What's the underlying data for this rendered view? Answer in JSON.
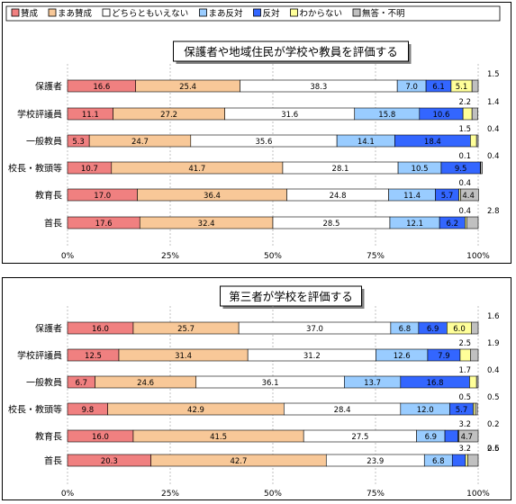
{
  "legend": {
    "items": [
      {
        "label": "賛成",
        "color": "#f08080"
      },
      {
        "label": "まあ賛成",
        "color": "#f8c898"
      },
      {
        "label": "どちらともいえない",
        "color": "#ffffff"
      },
      {
        "label": "まあ反対",
        "color": "#99ccff"
      },
      {
        "label": "反対",
        "color": "#3366ff"
      },
      {
        "label": "わからない",
        "color": "#ffff99"
      },
      {
        "label": "無答・不明",
        "color": "#c0c0c0"
      }
    ]
  },
  "chart_data": [
    {
      "type": "bar",
      "stacked": true,
      "orientation": "horizontal",
      "title": "保護者や地域住民が学校や教員を評価する",
      "categories": [
        "保護者",
        "学校評議員",
        "一般教員",
        "校長・教頭等",
        "教育長",
        "首長"
      ],
      "xlim": [
        0,
        100
      ],
      "xticks": [
        "0%",
        "25%",
        "50%",
        "75%",
        "100%"
      ],
      "series": [
        {
          "name": "賛成",
          "values": [
            16.6,
            11.1,
            5.3,
            10.7,
            17.0,
            17.6
          ]
        },
        {
          "name": "まあ賛成",
          "values": [
            25.4,
            27.2,
            24.7,
            41.7,
            36.4,
            32.4
          ]
        },
        {
          "name": "どちらともいえない",
          "values": [
            38.3,
            31.6,
            35.6,
            28.1,
            24.8,
            28.5
          ]
        },
        {
          "name": "まあ反対",
          "values": [
            7.0,
            15.8,
            14.1,
            10.5,
            11.4,
            12.1
          ]
        },
        {
          "name": "反対",
          "values": [
            6.1,
            10.6,
            18.4,
            9.5,
            5.7,
            6.2
          ]
        },
        {
          "name": "わからない",
          "values": [
            5.1,
            2.2,
            1.5,
            0.1,
            0.4,
            0.4
          ]
        },
        {
          "name": "無答・不明",
          "values": [
            1.5,
            1.4,
            0.4,
            0.4,
            4.4,
            2.8
          ]
        }
      ],
      "bar_labels": [
        [
          "16.6",
          "25.4",
          "38.3",
          "7.0",
          "6.1",
          "5.1",
          ""
        ],
        [
          "11.1",
          "27.2",
          "31.6",
          "15.8",
          "10.6",
          "",
          ""
        ],
        [
          "5.3",
          "24.7",
          "35.6",
          "14.1",
          "18.4",
          "",
          ""
        ],
        [
          "10.7",
          "41.7",
          "28.1",
          "10.5",
          "9.5",
          "",
          ""
        ],
        [
          "17.0",
          "36.4",
          "24.8",
          "11.4",
          "5.7",
          "",
          "4.4"
        ],
        [
          "17.6",
          "32.4",
          "28.5",
          "12.1",
          "6.2",
          "",
          ""
        ]
      ],
      "side_labels": [
        {
          "above": "",
          "right": "1.5"
        },
        {
          "above": "2.2",
          "right": "1.4"
        },
        {
          "above": "1.5",
          "right": "0.4"
        },
        {
          "above": "0.1",
          "right": "0.4"
        },
        {
          "above": "0.4",
          "right": ""
        },
        {
          "above": "0.4",
          "right": "2.8"
        }
      ]
    },
    {
      "type": "bar",
      "stacked": true,
      "orientation": "horizontal",
      "title": "第三者が学校を評価する",
      "categories": [
        "保護者",
        "学校評議員",
        "一般教員",
        "校長・教頭等",
        "教育長",
        "首長"
      ],
      "xlim": [
        0,
        100
      ],
      "xticks": [
        "0%",
        "25%",
        "50%",
        "75%",
        "100%"
      ],
      "series": [
        {
          "name": "賛成",
          "values": [
            16.0,
            12.5,
            6.7,
            9.8,
            16.0,
            20.3
          ]
        },
        {
          "name": "まあ賛成",
          "values": [
            25.7,
            31.4,
            24.6,
            42.9,
            41.5,
            42.7
          ]
        },
        {
          "name": "どちらともいえない",
          "values": [
            37.0,
            31.2,
            36.1,
            28.4,
            27.5,
            23.9
          ]
        },
        {
          "name": "まあ反対",
          "values": [
            6.8,
            12.6,
            13.7,
            12.0,
            6.9,
            6.8
          ]
        },
        {
          "name": "反対",
          "values": [
            6.9,
            7.9,
            16.8,
            5.7,
            3.2,
            3.2
          ]
        },
        {
          "name": "わからない",
          "values": [
            6.0,
            2.5,
            1.7,
            0.5,
            0.2,
            0.6
          ]
        },
        {
          "name": "無答・不明",
          "values": [
            1.6,
            1.9,
            0.4,
            0.5,
            4.7,
            2.5
          ]
        }
      ],
      "bar_labels": [
        [
          "16.0",
          "25.7",
          "37.0",
          "6.8",
          "6.9",
          "6.0",
          ""
        ],
        [
          "12.5",
          "31.4",
          "31.2",
          "12.6",
          "7.9",
          "",
          ""
        ],
        [
          "6.7",
          "24.6",
          "36.1",
          "13.7",
          "16.8",
          "",
          ""
        ],
        [
          "9.8",
          "42.9",
          "28.4",
          "12.0",
          "5.7",
          "",
          ""
        ],
        [
          "16.0",
          "41.5",
          "27.5",
          "6.9",
          "",
          "",
          "4.7"
        ],
        [
          "20.3",
          "42.7",
          "23.9",
          "6.8",
          "",
          "",
          ""
        ]
      ],
      "side_labels": [
        {
          "above": "",
          "right": "1.6"
        },
        {
          "above": "2.5",
          "right": "1.9"
        },
        {
          "above": "1.7",
          "right": "0.4"
        },
        {
          "above": "0.5",
          "right": "0.5"
        },
        {
          "above": "3.2",
          "right": "0.2"
        },
        {
          "above": "3.2",
          "right": "0.6"
        }
      ],
      "extra_labels": [
        {
          "row": 5,
          "text": "2.5"
        }
      ]
    }
  ]
}
